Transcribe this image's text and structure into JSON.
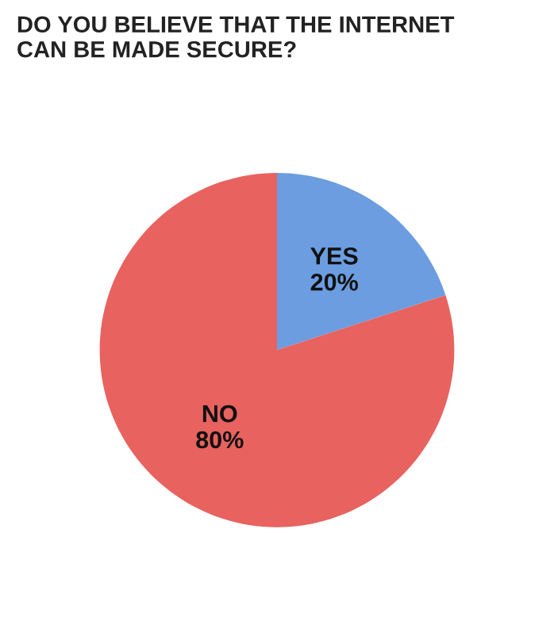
{
  "chart_data": {
    "type": "pie",
    "title": "DO YOU BELIEVE THAT THE INTERNET\nCAN BE MADE SECURE?",
    "categories": [
      "YES",
      "NO"
    ],
    "values": [
      20,
      80
    ],
    "value_labels": [
      "20%",
      "80%"
    ],
    "colors": [
      "#6b9de0",
      "#e8625f"
    ],
    "legend": false
  }
}
